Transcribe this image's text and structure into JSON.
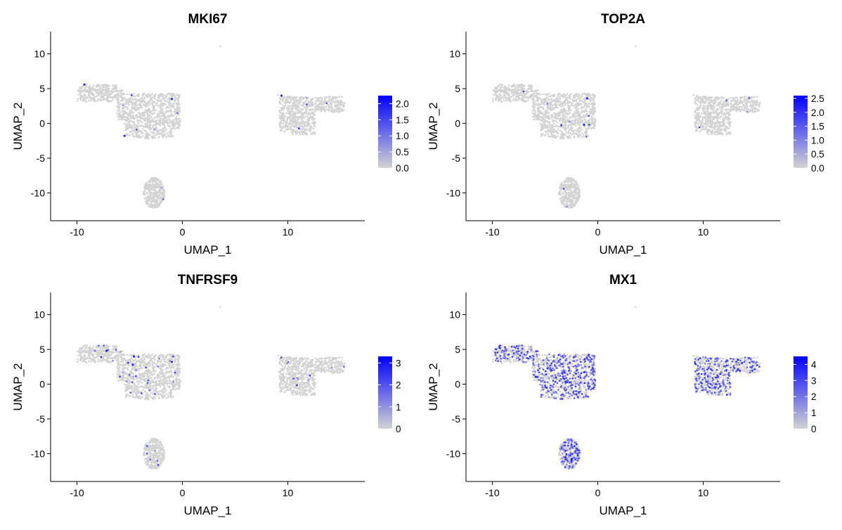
{
  "colors": {
    "low": "#d3d3d3",
    "high": "#0000ff",
    "axis": "#000000"
  },
  "chart_data": [
    {
      "type": "scatter",
      "title": "MKI67",
      "xlabel": "UMAP_1",
      "ylabel": "UMAP_2",
      "xlim": [
        -12.5,
        17.3
      ],
      "ylim": [
        -14.0,
        13.2
      ],
      "xticks": [
        -10,
        0,
        10
      ],
      "yticks": [
        -10,
        -5,
        0,
        5,
        10
      ],
      "xtick_labels": [
        "-10",
        "0",
        "10"
      ],
      "ytick_labels": [
        "-10",
        "-5",
        "0",
        "5",
        "10"
      ],
      "legend": {
        "position": "right",
        "min": 0.0,
        "max": 2.25,
        "ticks": [
          0.0,
          0.5,
          1.0,
          1.5,
          2.0
        ],
        "tick_labels": [
          "0.0",
          "0.5",
          "1.0",
          "1.5",
          "2.0"
        ]
      },
      "expression_fraction": 0.004,
      "highlighted_cells": [
        [
          -9.3,
          5.6
        ],
        [
          -1.0,
          3.5
        ],
        [
          -5.5,
          -1.8
        ],
        [
          9.4,
          4.0
        ]
      ]
    },
    {
      "type": "scatter",
      "title": "TOP2A",
      "xlabel": "UMAP_1",
      "ylabel": "UMAP_2",
      "xlim": [
        -12.5,
        17.3
      ],
      "ylim": [
        -14.0,
        13.2
      ],
      "xticks": [
        -10,
        0,
        10
      ],
      "yticks": [
        -10,
        -5,
        0,
        5,
        10
      ],
      "xtick_labels": [
        "-10",
        "0",
        "10"
      ],
      "ytick_labels": [
        "-10",
        "-5",
        "0",
        "5",
        "10"
      ],
      "legend": {
        "position": "right",
        "min": 0.0,
        "max": 2.6,
        "ticks": [
          0.0,
          0.5,
          1.0,
          1.5,
          2.0,
          2.5
        ],
        "tick_labels": [
          "0.0",
          "0.5",
          "1.0",
          "1.5",
          "2.0",
          "2.5"
        ]
      },
      "expression_fraction": 0.003,
      "highlighted_cells": [
        [
          -1.0,
          3.6
        ],
        [
          -1.3,
          -0.2
        ]
      ]
    },
    {
      "type": "scatter",
      "title": "TNFRSF9",
      "xlabel": "UMAP_1",
      "ylabel": "UMAP_2",
      "xlim": [
        -12.5,
        17.3
      ],
      "ylim": [
        -14.0,
        13.2
      ],
      "xticks": [
        -10,
        0,
        10
      ],
      "yticks": [
        -10,
        -5,
        0,
        5,
        10
      ],
      "xtick_labels": [
        "-10",
        "0",
        "10"
      ],
      "ytick_labels": [
        "-10",
        "-5",
        "0",
        "5",
        "10"
      ],
      "legend": {
        "position": "right",
        "min": 0,
        "max": 3.3,
        "ticks": [
          0,
          1,
          2,
          3
        ],
        "tick_labels": [
          "0",
          "1",
          "2",
          "3"
        ]
      },
      "expression_fraction": 0.02,
      "highlighted_cells": [
        [
          -7.2,
          4.8
        ],
        [
          -4.6,
          4.0
        ],
        [
          -1.0,
          3.2
        ],
        [
          -4.7,
          2.8
        ]
      ]
    },
    {
      "type": "scatter",
      "title": "MX1",
      "xlabel": "UMAP_1",
      "ylabel": "UMAP_2",
      "xlim": [
        -12.5,
        17.3
      ],
      "ylim": [
        -14.0,
        13.2
      ],
      "xticks": [
        -10,
        0,
        10
      ],
      "yticks": [
        -10,
        -5,
        0,
        5,
        10
      ],
      "xtick_labels": [
        "-10",
        "0",
        "10"
      ],
      "ytick_labels": [
        "-10",
        "-5",
        "0",
        "5",
        "10"
      ],
      "legend": {
        "position": "right",
        "min": 0,
        "max": 4.5,
        "ticks": [
          0,
          1,
          2,
          3,
          4
        ],
        "tick_labels": [
          "0",
          "1",
          "2",
          "3",
          "4"
        ]
      },
      "expression_fraction": 0.3,
      "highlighted_cells": [
        [
          13.3,
          3.5
        ],
        [
          -9.3,
          5.2
        ],
        [
          -2.5,
          -10.8
        ]
      ]
    }
  ]
}
